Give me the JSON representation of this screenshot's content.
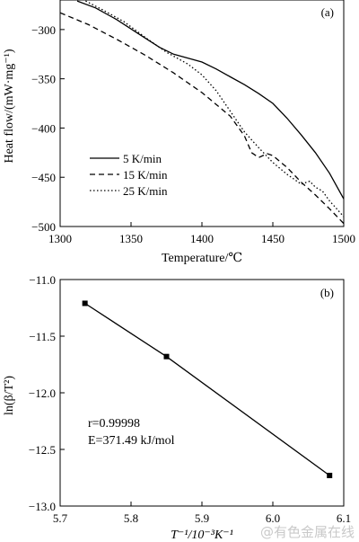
{
  "chart_data": [
    {
      "type": "line",
      "panel_label": "(a)",
      "xlabel": "Temperature/℃",
      "ylabel": "Heat flow/(mW·mg⁻¹)",
      "xlim": [
        1300,
        1500
      ],
      "ylim": [
        -500,
        -270
      ],
      "x_ticks": [
        1300,
        1350,
        1400,
        1450,
        1500
      ],
      "y_ticks": [
        -500,
        -450,
        -400,
        -350,
        -300
      ],
      "legend_position": "left",
      "series": [
        {
          "name": "5 K/min",
          "line_style": "solid",
          "points": [
            [
              1312,
              -271
            ],
            [
              1325,
              -278
            ],
            [
              1340,
              -290
            ],
            [
              1355,
              -304
            ],
            [
              1370,
              -318
            ],
            [
              1380,
              -325
            ],
            [
              1390,
              -329
            ],
            [
              1400,
              -333
            ],
            [
              1410,
              -340
            ],
            [
              1420,
              -348
            ],
            [
              1430,
              -356
            ],
            [
              1440,
              -365
            ],
            [
              1450,
              -375
            ],
            [
              1460,
              -390
            ],
            [
              1470,
              -407
            ],
            [
              1480,
              -425
            ],
            [
              1490,
              -446
            ],
            [
              1500,
              -472
            ]
          ]
        },
        {
          "name": "15 K/min",
          "line_style": "dashed",
          "points": [
            [
              1300,
              -283
            ],
            [
              1320,
              -295
            ],
            [
              1340,
              -310
            ],
            [
              1360,
              -326
            ],
            [
              1380,
              -344
            ],
            [
              1400,
              -364
            ],
            [
              1420,
              -388
            ],
            [
              1430,
              -408
            ],
            [
              1435,
              -425
            ],
            [
              1440,
              -430
            ],
            [
              1446,
              -426
            ],
            [
              1450,
              -428
            ],
            [
              1460,
              -440
            ],
            [
              1470,
              -455
            ],
            [
              1480,
              -468
            ],
            [
              1490,
              -482
            ],
            [
              1500,
              -497
            ]
          ]
        },
        {
          "name": "25 K/min",
          "line_style": "dotted",
          "points": [
            [
              1318,
              -271
            ],
            [
              1330,
              -280
            ],
            [
              1345,
              -292
            ],
            [
              1360,
              -308
            ],
            [
              1375,
              -323
            ],
            [
              1390,
              -335
            ],
            [
              1400,
              -346
            ],
            [
              1410,
              -362
            ],
            [
              1420,
              -383
            ],
            [
              1430,
              -404
            ],
            [
              1440,
              -420
            ],
            [
              1450,
              -435
            ],
            [
              1460,
              -447
            ],
            [
              1470,
              -457
            ],
            [
              1476,
              -454
            ],
            [
              1480,
              -460
            ],
            [
              1485,
              -464
            ],
            [
              1490,
              -474
            ],
            [
              1500,
              -490
            ]
          ]
        }
      ]
    },
    {
      "type": "scatter",
      "panel_label": "(b)",
      "xlabel": "T⁻¹/10⁻³K⁻¹",
      "ylabel": "ln(β/T²)",
      "xlim": [
        5.7,
        6.1
      ],
      "ylim": [
        -13.0,
        -11.0
      ],
      "x_ticks": [
        "5.7",
        "5.8",
        "5.9",
        "6.0",
        "6.1"
      ],
      "y_ticks": [
        "-11.0",
        "-11.5",
        "-12.0",
        "-12.5",
        "-13.0"
      ],
      "points": [
        {
          "x": 5.735,
          "y": -11.21
        },
        {
          "x": 5.85,
          "y": -11.68
        },
        {
          "x": 6.08,
          "y": -12.73
        }
      ],
      "fit_line": true,
      "annotations": [
        "r=0.99998",
        "E=371.49 kJ/mol"
      ]
    }
  ],
  "watermark": "@有色金属在线"
}
